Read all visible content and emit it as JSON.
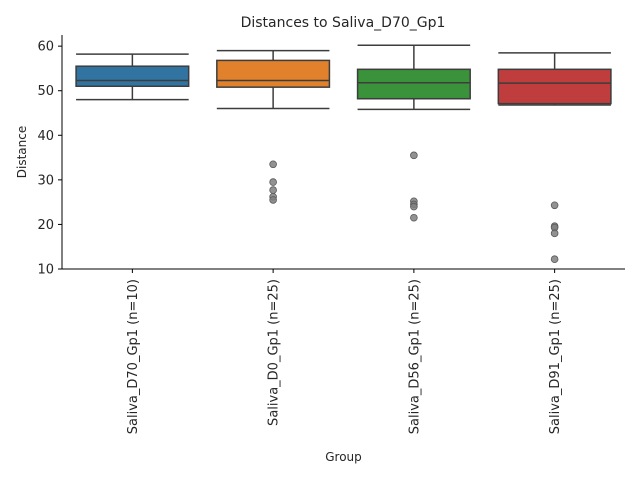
{
  "chart_data": {
    "type": "box",
    "title": "Distances to Saliva_D70_Gp1",
    "xlabel": "Group",
    "ylabel": "Distance",
    "ylim": [
      10,
      62.5
    ],
    "yticks": [
      10,
      20,
      30,
      40,
      50,
      60
    ],
    "grid": false,
    "categories": [
      "Saliva_D70_Gp1 (n=10)",
      "Saliva_D0_Gp1 (n=25)",
      "Saliva_D56_Gp1 (n=25)",
      "Saliva_D91_Gp1 (n=25)"
    ],
    "colors": [
      "#3274a1",
      "#e1812c",
      "#3a923a",
      "#c03d3e"
    ],
    "boxes": [
      {
        "whisker_low": 48.0,
        "q1": 51.0,
        "median": 52.3,
        "q3": 55.5,
        "whisker_high": 58.2,
        "outliers": []
      },
      {
        "whisker_low": 46.0,
        "q1": 50.8,
        "median": 52.3,
        "q3": 56.8,
        "whisker_high": 59.0,
        "outliers": [
          33.5,
          29.5,
          27.7,
          26.2,
          25.5
        ]
      },
      {
        "whisker_low": 45.8,
        "q1": 48.2,
        "median": 51.8,
        "q3": 54.8,
        "whisker_high": 60.2,
        "outliers": [
          35.5,
          25.2,
          24.5,
          24.0,
          21.5
        ]
      },
      {
        "whisker_low": 46.8,
        "q1": 47.1,
        "median": 51.7,
        "q3": 54.8,
        "whisker_high": 58.5,
        "outliers": [
          24.3,
          19.6,
          19.3,
          18.0,
          12.2
        ]
      }
    ]
  }
}
